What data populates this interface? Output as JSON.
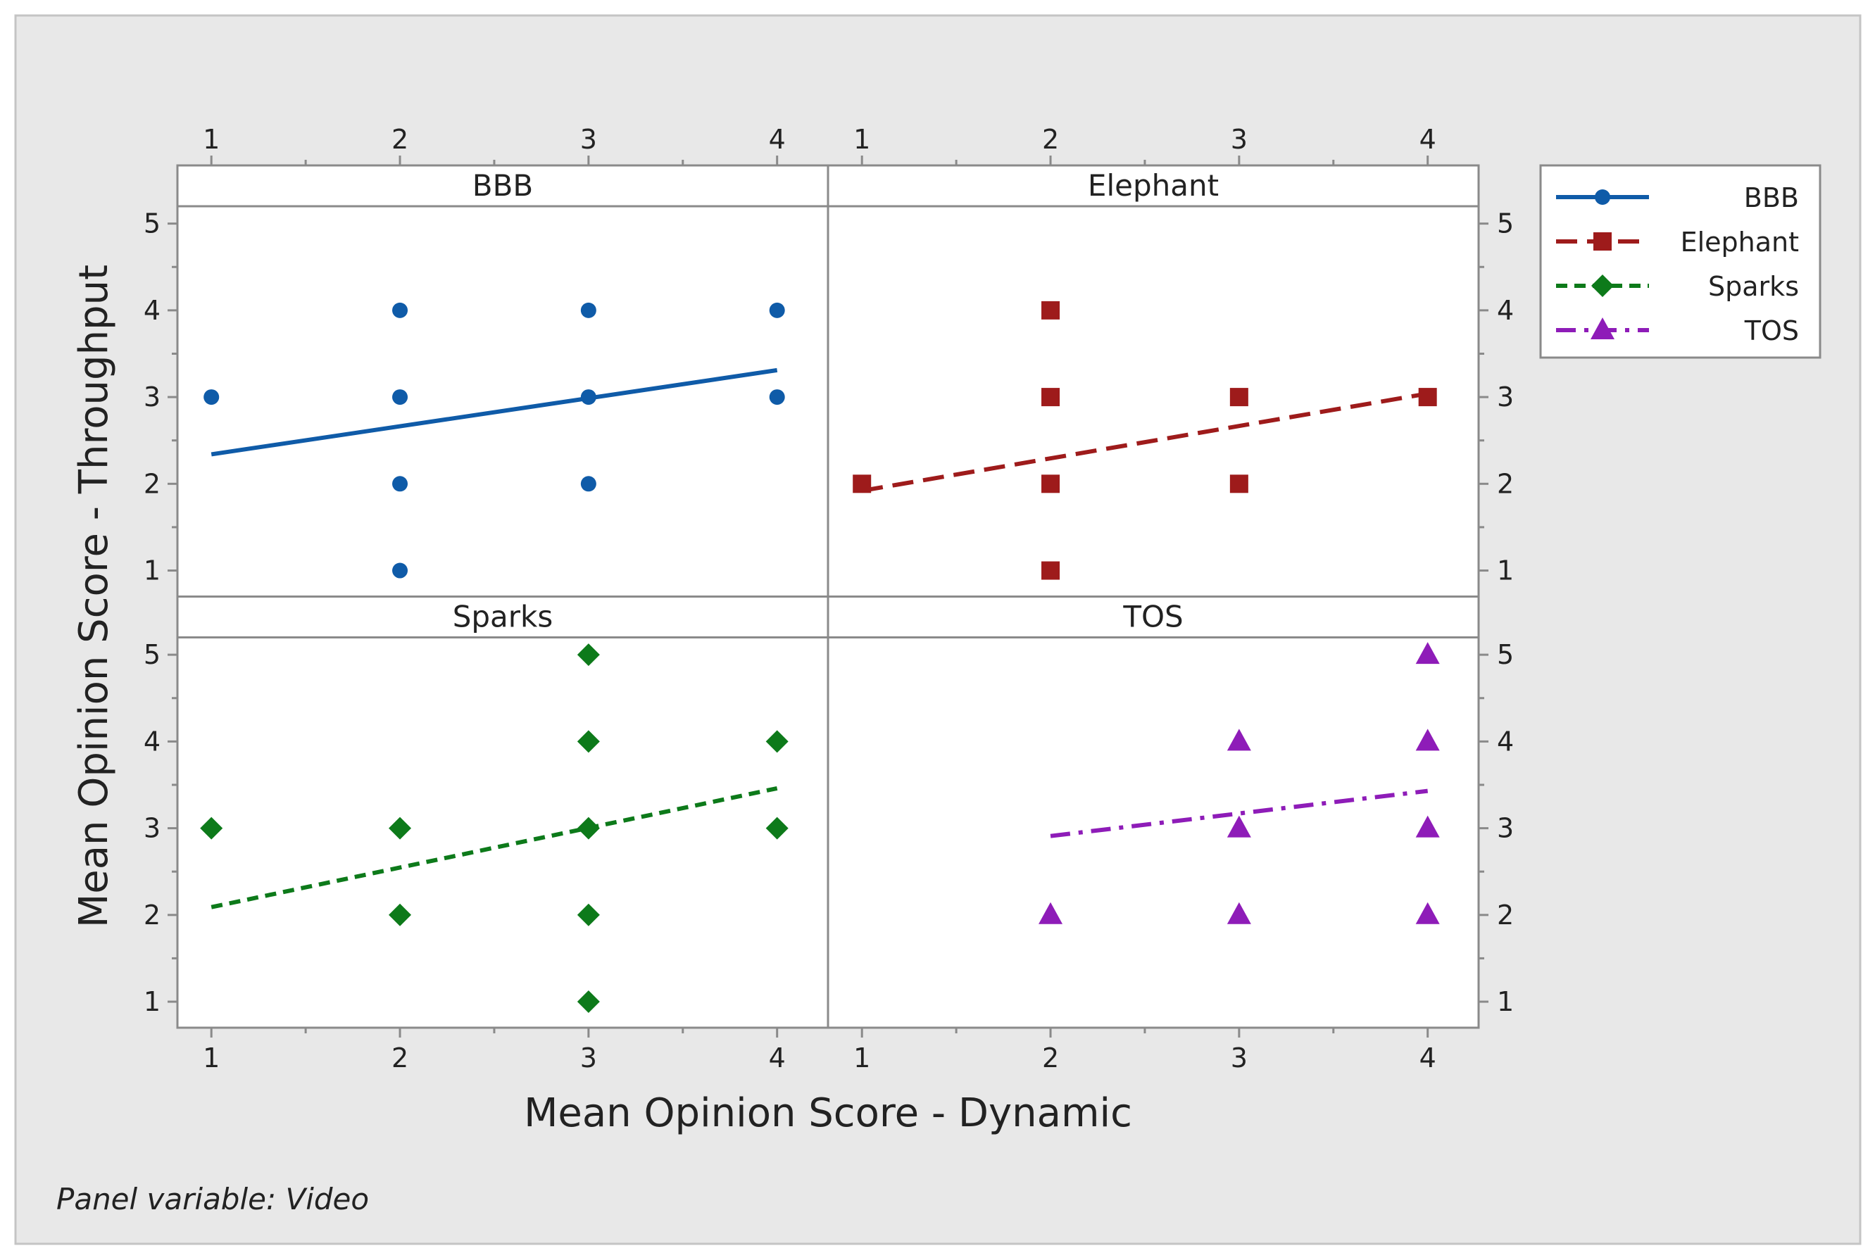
{
  "chart_data": {
    "type": "scatter",
    "xlabel": "Mean Opinion Score - Dynamic",
    "ylabel": "Mean Opinion Score - Throughput",
    "footnote": "Panel variable: Video",
    "xlim": [
      0.82,
      4.27
    ],
    "x_ticks": [
      1,
      2,
      3,
      4
    ],
    "ylim": [
      0.7,
      5.2
    ],
    "y_ticks": [
      1,
      2,
      3,
      4,
      5
    ],
    "legend_position": "right",
    "panels": [
      {
        "name": "BBB",
        "color": "#0f5ba8",
        "marker": "circle",
        "dash": "solid",
        "points": [
          [
            1,
            3
          ],
          [
            2,
            4
          ],
          [
            2,
            3
          ],
          [
            2,
            2
          ],
          [
            2,
            1
          ],
          [
            3,
            4
          ],
          [
            3,
            3
          ],
          [
            3,
            2
          ],
          [
            4,
            4
          ],
          [
            4,
            3
          ]
        ],
        "fit": {
          "x": [
            1,
            4
          ],
          "y": [
            2.34,
            3.31
          ]
        }
      },
      {
        "name": "Elephant",
        "color": "#9e1b1b",
        "marker": "square",
        "dash": "dash",
        "points": [
          [
            1,
            2
          ],
          [
            2,
            4
          ],
          [
            2,
            3
          ],
          [
            2,
            2
          ],
          [
            2,
            1
          ],
          [
            3,
            3
          ],
          [
            3,
            2
          ],
          [
            4,
            3
          ]
        ],
        "fit": {
          "x": [
            1,
            4
          ],
          "y": [
            1.92,
            3.04
          ]
        }
      },
      {
        "name": "Sparks",
        "color": "#0d7a1a",
        "marker": "diamond",
        "dash": "shortdash",
        "points": [
          [
            1,
            3
          ],
          [
            2,
            3
          ],
          [
            2,
            2
          ],
          [
            3,
            5
          ],
          [
            3,
            4
          ],
          [
            3,
            3
          ],
          [
            3,
            2
          ],
          [
            3,
            1
          ],
          [
            4,
            4
          ],
          [
            4,
            3
          ]
        ],
        "fit": {
          "x": [
            1,
            4
          ],
          "y": [
            2.09,
            3.46
          ]
        }
      },
      {
        "name": "TOS",
        "color": "#8e1cb8",
        "marker": "triangle",
        "dash": "dashdot",
        "points": [
          [
            2,
            2
          ],
          [
            3,
            4
          ],
          [
            3,
            3
          ],
          [
            3,
            2
          ],
          [
            4,
            5
          ],
          [
            4,
            4
          ],
          [
            4,
            3
          ],
          [
            4,
            2
          ]
        ],
        "fit": {
          "x": [
            2,
            4
          ],
          "y": [
            2.91,
            3.43
          ]
        }
      }
    ]
  }
}
